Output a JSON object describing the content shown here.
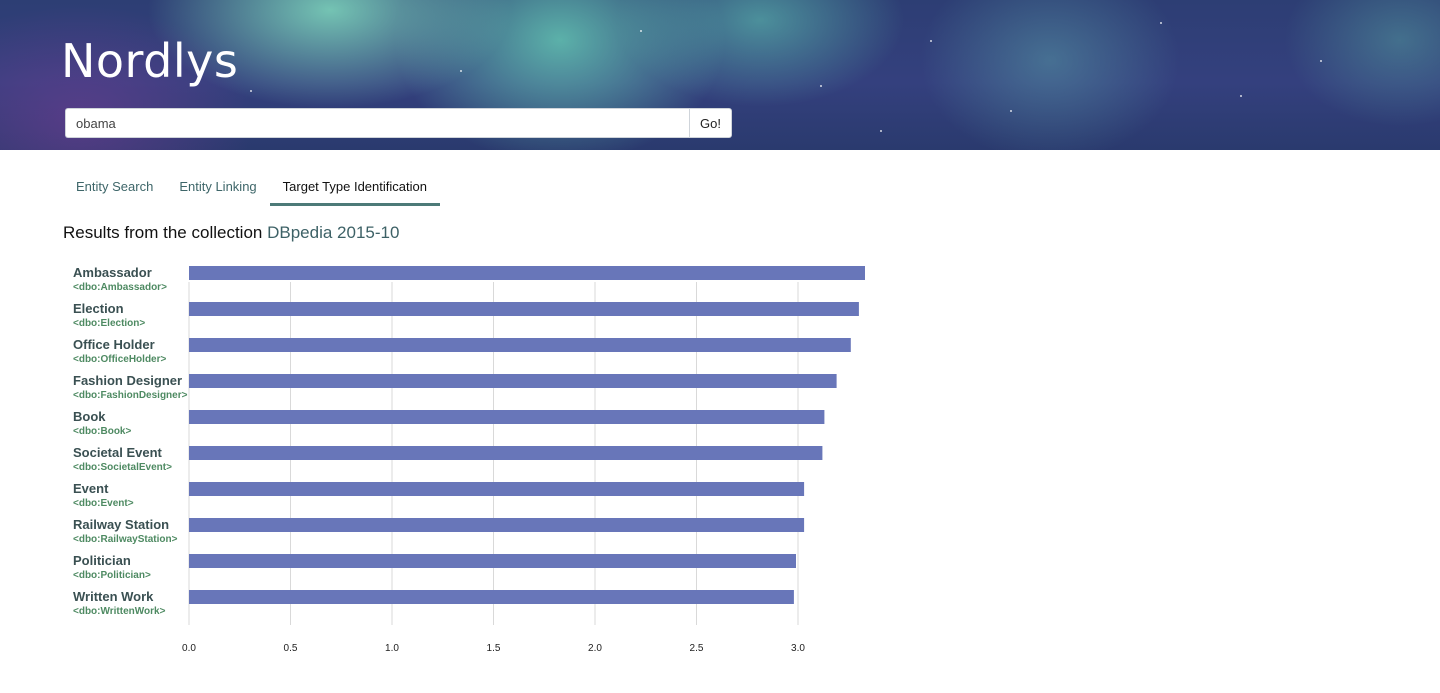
{
  "header": {
    "brand": "Nordlys",
    "search": {
      "value": "obama",
      "button_label": "Go!"
    }
  },
  "tabs": [
    {
      "label": "Entity Search",
      "active": false
    },
    {
      "label": "Entity Linking",
      "active": false
    },
    {
      "label": "Target Type Identification",
      "active": true
    }
  ],
  "results": {
    "prefix": "Results from the collection",
    "collection": "DBpedia 2015-10"
  },
  "colors": {
    "bar": "#6876b9",
    "accent": "#4d7a78",
    "link": "#3d6166",
    "uri": "#4e8a62"
  },
  "chart_data": {
    "type": "bar",
    "orientation": "horizontal",
    "categories": [
      "Ambassador",
      "Election",
      "Office Holder",
      "Fashion Designer",
      "Book",
      "Societal Event",
      "Event",
      "Railway Station",
      "Politician",
      "Written Work"
    ],
    "uris": [
      "<dbo:Ambassador>",
      "<dbo:Election>",
      "<dbo:OfficeHolder>",
      "<dbo:FashionDesigner>",
      "<dbo:Book>",
      "<dbo:SocietalEvent>",
      "<dbo:Event>",
      "<dbo:RailwayStation>",
      "<dbo:Politician>",
      "<dbo:WrittenWork>"
    ],
    "values": [
      3.33,
      3.3,
      3.26,
      3.19,
      3.13,
      3.12,
      3.03,
      3.03,
      2.99,
      2.98
    ],
    "xticks": [
      "0.0",
      "0.5",
      "1.0",
      "1.5",
      "2.0",
      "2.5",
      "3.0"
    ],
    "xlim": [
      0,
      3.33
    ],
    "grid": true
  }
}
